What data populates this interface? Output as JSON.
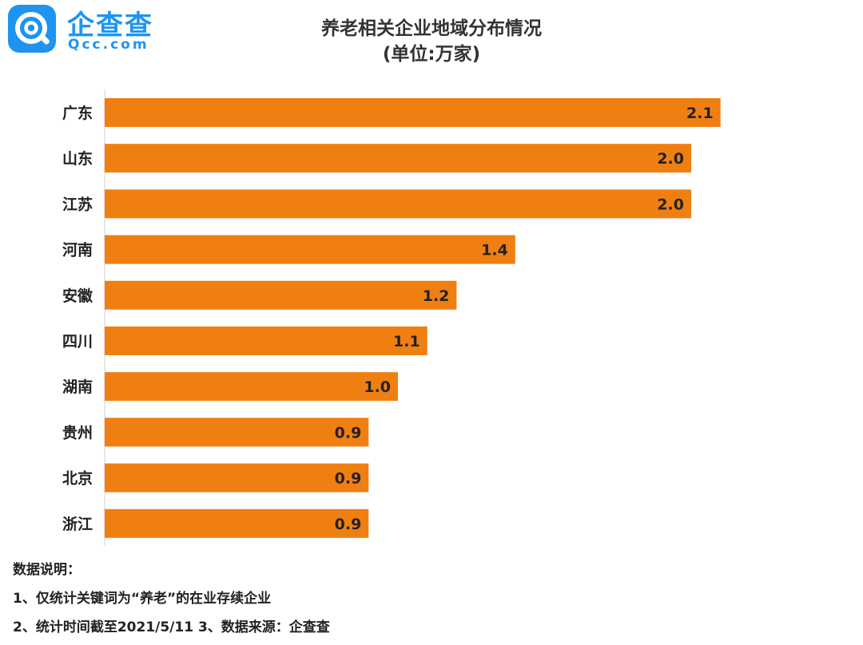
{
  "logo": {
    "name_cn": "企查查",
    "name_en": "Qcc.com",
    "colors": {
      "brand": "#1e94f0"
    },
    "icon": "qcc-logo-icon"
  },
  "chart_data": {
    "type": "bar",
    "orientation": "horizontal",
    "title": "养老相关企业地域分布情况",
    "subtitle": "(单位:万家)",
    "categories": [
      "广东",
      "山东",
      "江苏",
      "河南",
      "安徽",
      "四川",
      "湖南",
      "贵州",
      "北京",
      "浙江"
    ],
    "values": [
      2.1,
      2.0,
      2.0,
      1.4,
      1.2,
      1.1,
      1.0,
      0.9,
      0.9,
      0.9
    ],
    "value_labels": [
      "2.1",
      "2.0",
      "2.0",
      "1.4",
      "1.2",
      "1.1",
      "1.0",
      "0.9",
      "0.9",
      "0.9"
    ],
    "xlim": [
      0,
      2.2
    ],
    "grid": false,
    "legend": "none",
    "bar_color": "#f07f12"
  },
  "notes": {
    "heading": "数据说明：",
    "line1": "1、仅统计关键词为“养老”的在业存续企业",
    "line2": "2、统计时间截至2021/5/11   3、数据来源：企查查"
  }
}
